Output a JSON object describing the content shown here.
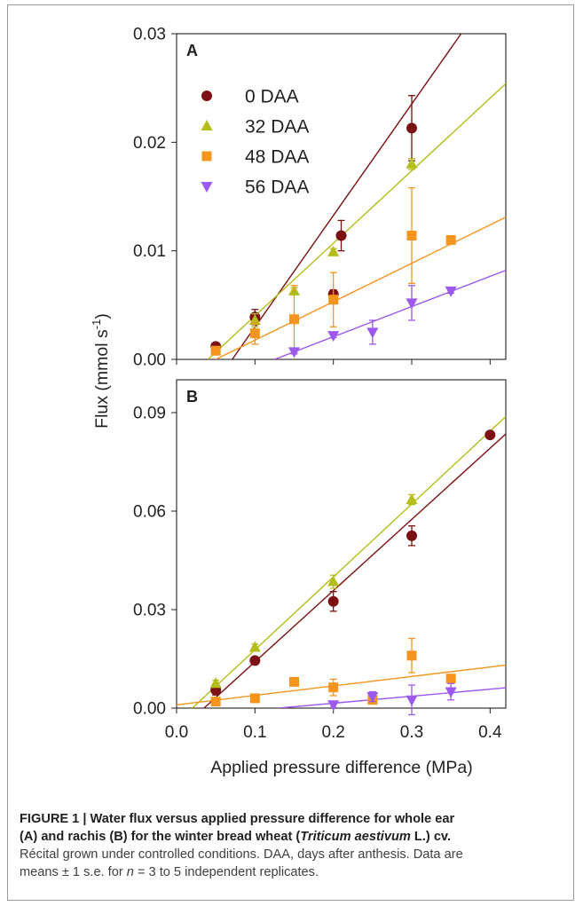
{
  "chart_data": [
    {
      "panel": "A",
      "type": "scatter",
      "ylim": [
        0,
        0.03
      ],
      "xlim": [
        0,
        0.42
      ],
      "y_ticks": [
        "0.00",
        "0.01",
        "0.02",
        "0.03"
      ],
      "series": [
        {
          "name": "0 DAA",
          "color": "#7b1113",
          "marker": "circle",
          "x": [
            0.05,
            0.1,
            0.2,
            0.21,
            0.3
          ],
          "y": [
            0.0012,
            0.0039,
            0.006,
            0.0114,
            0.0213
          ],
          "err": [
            0.0002,
            0.0007,
            0.0004,
            0.0014,
            0.003
          ],
          "fit": [
            [
              0.071,
              0
            ],
            [
              0.363,
              0.03
            ]
          ]
        },
        {
          "name": "32 DAA",
          "color": "#b5bd1a",
          "marker": "triangle-up",
          "x": [
            0.1,
            0.15,
            0.2,
            0.3
          ],
          "y": [
            0.0036,
            0.0063,
            0.0099,
            0.018
          ],
          "err": [
            0.0006,
            0.0003,
            0.0003,
            0.0005
          ],
          "fit": [
            [
              0.04,
              0
            ],
            [
              0.42,
              0.0254
            ]
          ]
        },
        {
          "name": "48 DAA",
          "color": "#f7941d",
          "marker": "square",
          "x": [
            0.05,
            0.1,
            0.15,
            0.2,
            0.3,
            0.35
          ],
          "y": [
            0.0008,
            0.0024,
            0.0037,
            0.0055,
            0.0114,
            0.011
          ],
          "err": [
            0.0003,
            0.001,
            0.0031,
            0.0025,
            0.0044,
            0.0002
          ],
          "fit": [
            [
              0.05,
              0
            ],
            [
              0.42,
              0.0131
            ]
          ]
        },
        {
          "name": "56 DAA",
          "color": "#9b59f0",
          "marker": "triangle-down",
          "x": [
            0.15,
            0.2,
            0.25,
            0.3,
            0.35
          ],
          "y": [
            0.0007,
            0.0022,
            0.0025,
            0.0052,
            0.0063
          ],
          "err": [
            0.0002,
            0.0002,
            0.0011,
            0.0016,
            0.0002
          ],
          "fit": [
            [
              0.125,
              0
            ],
            [
              0.42,
              0.0082
            ]
          ]
        }
      ]
    },
    {
      "panel": "B",
      "type": "scatter",
      "ylim": [
        0,
        0.1
      ],
      "xlim": [
        0,
        0.42
      ],
      "y_ticks": [
        "0.00",
        "0.03",
        "0.06",
        "0.09"
      ],
      "series": [
        {
          "name": "0 DAA",
          "color": "#7b1113",
          "marker": "circle",
          "x": [
            0.05,
            0.1,
            0.2,
            0.3,
            0.4
          ],
          "y": [
            0.0055,
            0.0145,
            0.0325,
            0.0525,
            0.0832
          ],
          "err": [
            0.0015,
            0.001,
            0.003,
            0.003,
            0.0005
          ],
          "fit": [
            [
              0.035,
              0
            ],
            [
              0.42,
              0.0835
            ]
          ]
        },
        {
          "name": "32 DAA",
          "color": "#b5bd1a",
          "marker": "triangle-up",
          "x": [
            0.05,
            0.1,
            0.2,
            0.3
          ],
          "y": [
            0.0075,
            0.0185,
            0.0385,
            0.0635
          ],
          "err": [
            0.001,
            0.001,
            0.002,
            0.0015
          ],
          "fit": [
            [
              0.02,
              0
            ],
            [
              0.42,
              0.0888
            ]
          ]
        },
        {
          "name": "48 DAA",
          "color": "#f7941d",
          "marker": "square",
          "x": [
            0.05,
            0.1,
            0.15,
            0.2,
            0.25,
            0.3,
            0.35
          ],
          "y": [
            0.002,
            0.003,
            0.008,
            0.0063,
            0.0025,
            0.016,
            0.009
          ],
          "err": [
            0.0005,
            0.0005,
            0.0005,
            0.0025,
            0.0005,
            0.0052,
            0.0005
          ],
          "fit": [
            [
              0,
              0.001
            ],
            [
              0.42,
              0.0131
            ]
          ]
        },
        {
          "name": "56 DAA",
          "color": "#9b59f0",
          "marker": "triangle-down",
          "x": [
            0.2,
            0.25,
            0.3,
            0.35
          ],
          "y": [
            0.001,
            0.0035,
            0.0025,
            0.005
          ],
          "err": [
            0.0008,
            0.0015,
            0.0045,
            0.0025
          ],
          "fit": [
            [
              0.13,
              0
            ],
            [
              0.42,
              0.0062
            ]
          ]
        }
      ]
    }
  ],
  "axes": {
    "ylabel_main": "Flux (mmol s",
    "ylabel_sup": "-1",
    "ylabel_close": ")",
    "xlabel": "Applied pressure difference (MPa)",
    "x_ticks": [
      "0.0",
      "0.1",
      "0.2",
      "0.3",
      "0.4"
    ]
  },
  "legend": [
    "0 DAA",
    "32 DAA",
    "48 DAA",
    "56 DAA"
  ],
  "caption": {
    "head_1": "FIGURE 1 | Water flux versus applied pressure difference for whole ear",
    "head_2a": "(A) and rachis (B) for the winter bread wheat (",
    "head_2i": "Triticum aestivum",
    "head_2b": " L.) cv.",
    "body_1": "Récital grown under controlled conditions. DAA, days after anthesis. Data are",
    "body_2a": "means ± 1 s.e. for ",
    "body_2i": "n",
    "body_2b": " = 3 to 5 independent replicates."
  }
}
